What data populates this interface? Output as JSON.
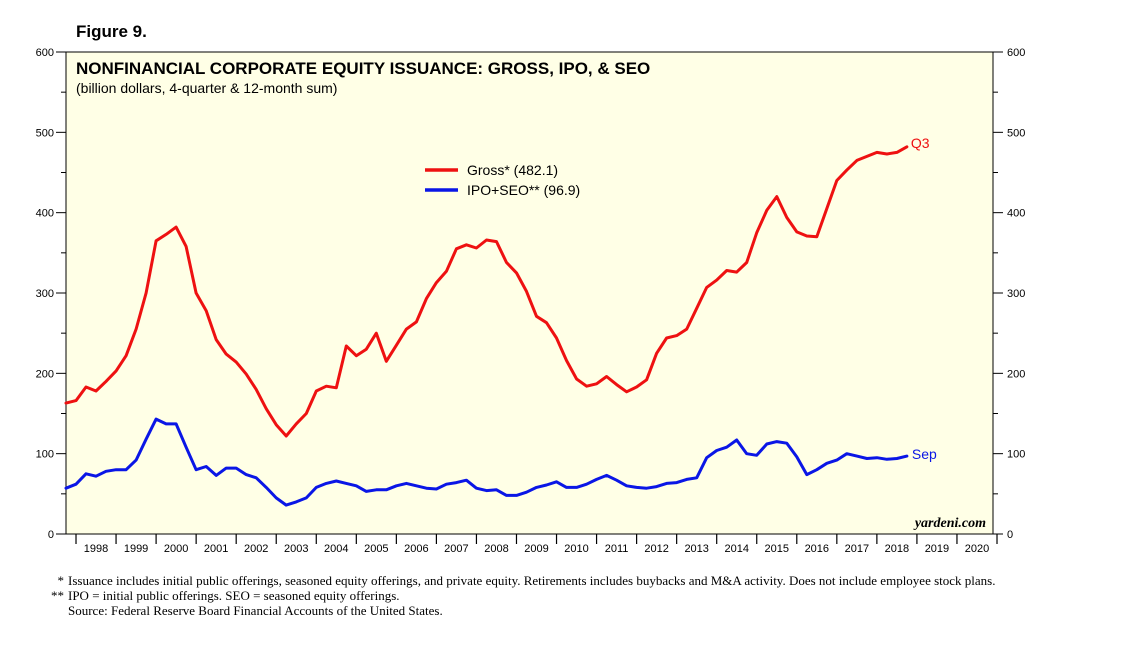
{
  "figure_label": "Figure 9.",
  "chart_data": {
    "type": "line",
    "title": "NONFINANCIAL CORPORATE EQUITY ISSUANCE: GROSS, IPO, & SEO",
    "subtitle": "(billion dollars, 4-quarter & 12-month sum)",
    "ylim": [
      0,
      600
    ],
    "y_ticks": [
      "0",
      "100",
      "200",
      "300",
      "400",
      "500",
      "600"
    ],
    "xlim": [
      1997.75,
      2020.9
    ],
    "x_tick_labels": [
      "1998",
      "1999",
      "2000",
      "2001",
      "2002",
      "2003",
      "2004",
      "2005",
      "2006",
      "2007",
      "2008",
      "2009",
      "2010",
      "2011",
      "2012",
      "2013",
      "2014",
      "2015",
      "2016",
      "2017",
      "2018",
      "2019",
      "2020"
    ],
    "watermark": "yardeni.com",
    "colors": {
      "gross": "#ee1111",
      "ipo": "#0a16e6"
    },
    "series": [
      {
        "name": "Gross* (482.1)",
        "end_label": "Q3",
        "x": [
          1997.75,
          1998.0,
          1998.25,
          1998.5,
          1998.75,
          1999.0,
          1999.25,
          1999.5,
          1999.75,
          2000.0,
          2000.25,
          2000.5,
          2000.75,
          2001.0,
          2001.25,
          2001.5,
          2001.75,
          2002.0,
          2002.25,
          2002.5,
          2002.75,
          2003.0,
          2003.25,
          2003.5,
          2003.75,
          2004.0,
          2004.25,
          2004.5,
          2004.75,
          2005.0,
          2005.25,
          2005.5,
          2005.75,
          2006.0,
          2006.25,
          2006.5,
          2006.75,
          2007.0,
          2007.25,
          2007.5,
          2007.75,
          2008.0,
          2008.25,
          2008.5,
          2008.75,
          2009.0,
          2009.25,
          2009.5,
          2009.75,
          2010.0,
          2010.25,
          2010.5,
          2010.75,
          2011.0,
          2011.25,
          2011.5,
          2011.75,
          2012.0,
          2012.25,
          2012.5,
          2012.75,
          2013.0,
          2013.25,
          2013.5,
          2013.75,
          2014.0,
          2014.25,
          2014.5,
          2014.75,
          2015.0,
          2015.25,
          2015.5,
          2015.75,
          2016.0,
          2016.25,
          2016.5,
          2016.75,
          2017.0,
          2017.25,
          2017.5,
          2017.75,
          2018.0,
          2018.25,
          2018.5,
          2018.75
        ],
        "values": [
          163,
          166,
          183,
          178,
          190,
          203,
          222,
          255,
          300,
          365,
          373,
          382,
          358,
          300,
          278,
          242,
          224,
          214,
          199,
          180,
          156,
          136,
          122,
          137,
          150,
          178,
          184,
          182,
          234,
          222,
          230,
          250,
          215,
          235,
          255,
          264,
          293,
          313,
          327,
          355,
          360,
          356,
          366,
          364,
          338,
          325,
          302,
          271,
          263,
          244,
          216,
          193,
          184,
          187,
          196,
          186,
          177,
          183,
          192,
          225,
          244,
          247,
          255,
          281,
          307,
          316,
          328,
          326,
          338,
          375,
          403,
          420,
          394,
          376,
          371,
          370,
          405,
          440,
          453,
          465,
          470,
          475,
          473,
          475,
          482
        ]
      },
      {
        "name": "IPO+SEO** (96.9)",
        "end_label": "Sep",
        "x": [
          1997.75,
          1998.0,
          1998.25,
          1998.5,
          1998.75,
          1999.0,
          1999.25,
          1999.5,
          1999.75,
          2000.0,
          2000.25,
          2000.5,
          2000.75,
          2001.0,
          2001.25,
          2001.5,
          2001.75,
          2002.0,
          2002.25,
          2002.5,
          2002.75,
          2003.0,
          2003.25,
          2003.5,
          2003.75,
          2004.0,
          2004.25,
          2004.5,
          2004.75,
          2005.0,
          2005.25,
          2005.5,
          2005.75,
          2006.0,
          2006.25,
          2006.5,
          2006.75,
          2007.0,
          2007.25,
          2007.5,
          2007.75,
          2008.0,
          2008.25,
          2008.5,
          2008.75,
          2009.0,
          2009.25,
          2009.5,
          2009.75,
          2010.0,
          2010.25,
          2010.5,
          2010.75,
          2011.0,
          2011.25,
          2011.5,
          2011.75,
          2012.0,
          2012.25,
          2012.5,
          2012.75,
          2013.0,
          2013.25,
          2013.5,
          2013.75,
          2014.0,
          2014.25,
          2014.5,
          2014.75,
          2015.0,
          2015.25,
          2015.5,
          2015.75,
          2016.0,
          2016.25,
          2016.5,
          2016.75,
          2017.0,
          2017.25,
          2017.5,
          2017.75,
          2018.0,
          2018.25,
          2018.5,
          2018.75
        ],
        "values": [
          57,
          62,
          75,
          72,
          78,
          80,
          80,
          92,
          118,
          143,
          137,
          137,
          108,
          80,
          84,
          73,
          82,
          82,
          74,
          70,
          58,
          45,
          36,
          40,
          45,
          58,
          63,
          66,
          63,
          60,
          53,
          55,
          55,
          60,
          63,
          60,
          57,
          56,
          62,
          64,
          67,
          57,
          54,
          55,
          48,
          48,
          52,
          58,
          61,
          65,
          58,
          58,
          62,
          68,
          73,
          67,
          60,
          58,
          57,
          59,
          63,
          64,
          68,
          70,
          95,
          104,
          108,
          117,
          100,
          98,
          112,
          115,
          113,
          96,
          74,
          80,
          88,
          92,
          100,
          97,
          94,
          95,
          93,
          94,
          97
        ]
      }
    ]
  },
  "footnotes": [
    {
      "mark": "*",
      "text": "Issuance includes initial public offerings, seasoned equity offerings, and private equity. Retirements includes buybacks and M&A activity. Does not include employee stock plans."
    },
    {
      "mark": "**",
      "text": "IPO = initial public offerings. SEO = seasoned equity offerings."
    },
    {
      "mark": "",
      "text": "Source: Federal Reserve Board Financial Accounts of the United States."
    }
  ]
}
